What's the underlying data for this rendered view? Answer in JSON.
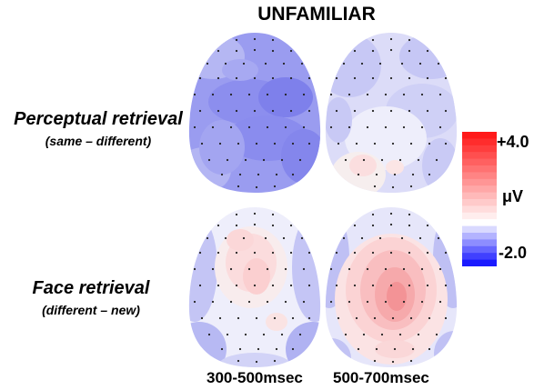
{
  "title": "UNFAMILIAR",
  "rows": [
    {
      "label": "Perceptual retrieval",
      "sub": "(same – different)"
    },
    {
      "label": "Face retrieval",
      "sub": "(different – new)"
    }
  ],
  "columns": [
    "300-500msec",
    "500-700msec"
  ],
  "colorbar": {
    "max_label": "+4.0",
    "unit": "μV",
    "min_label": "-2.0",
    "max": 4.0,
    "min": -2.0,
    "colors": {
      "positive": "#ff1a1a",
      "zero": "#ffffff",
      "negative": "#1a1aff"
    }
  },
  "maps": [
    {
      "name": "perceptual-300-500",
      "mean_uV": -1.1
    },
    {
      "name": "perceptual-500-700",
      "mean_uV": -0.3
    },
    {
      "name": "face-300-500",
      "mean_uV": 0.4
    },
    {
      "name": "face-500-700",
      "mean_uV": 1.2
    }
  ]
}
